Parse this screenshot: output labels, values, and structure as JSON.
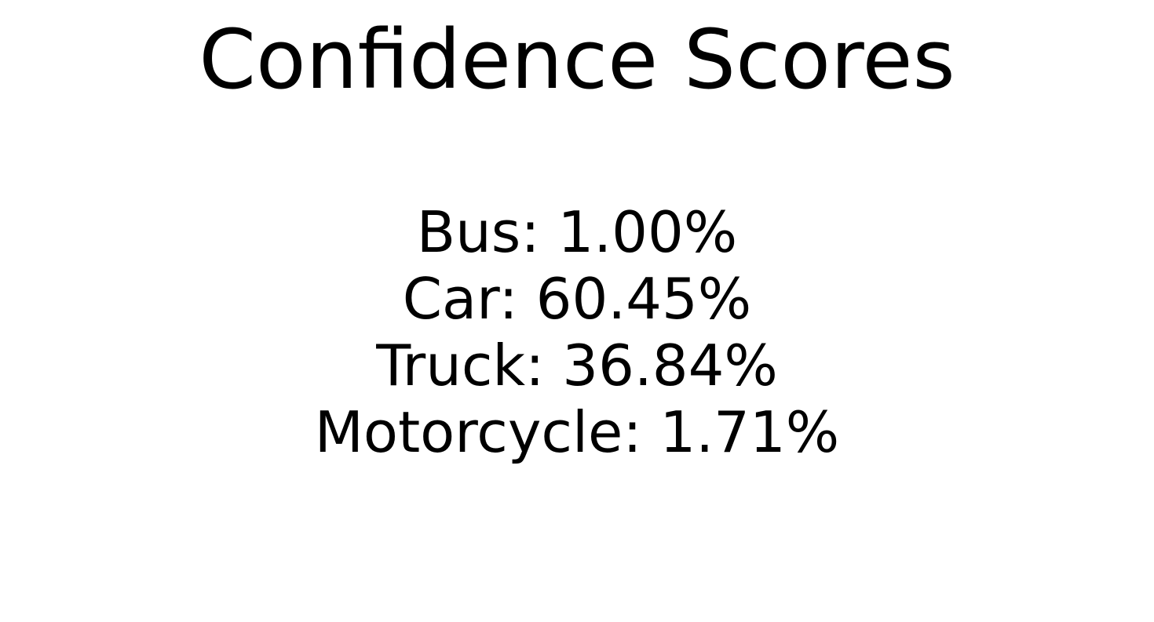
{
  "title": "Confidence Scores",
  "scores": [
    {
      "label": "Bus",
      "value": "1.00%"
    },
    {
      "label": "Car",
      "value": "60.45%"
    },
    {
      "label": "Truck",
      "value": "36.84%"
    },
    {
      "label": "Motorcycle",
      "value": "1.71%"
    }
  ]
}
